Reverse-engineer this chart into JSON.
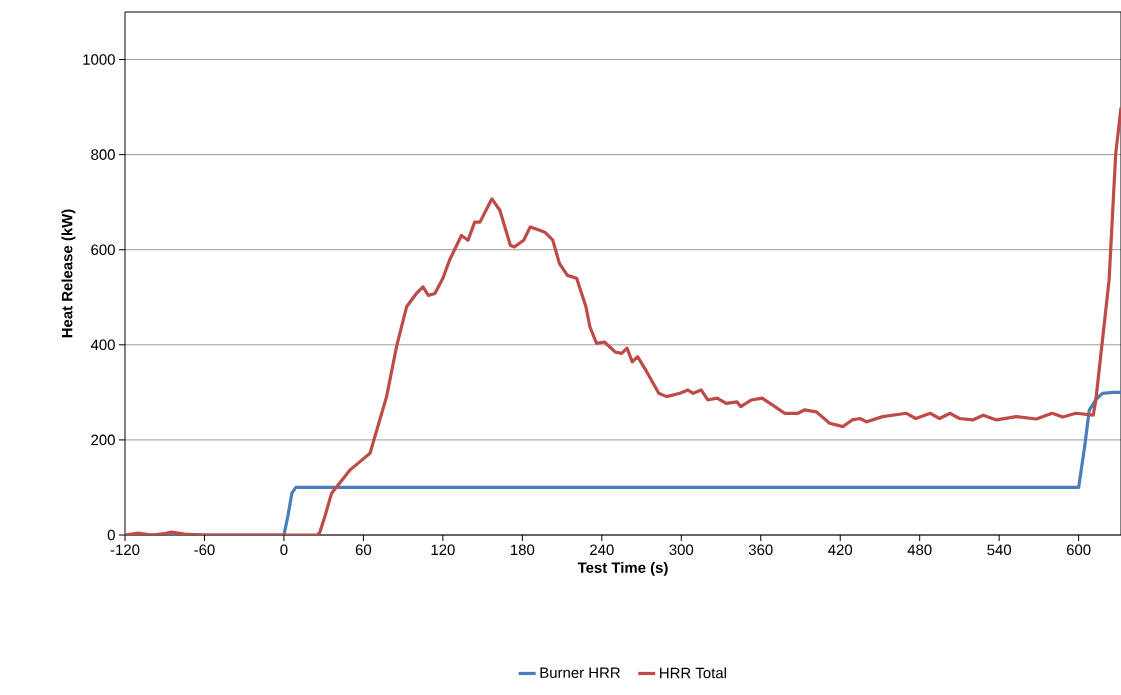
{
  "chart_data": {
    "type": "line",
    "xlabel": "Test Time (s)",
    "ylabel": "Heat Release (kW)",
    "xlim": [
      -120,
      632
    ],
    "ylim": [
      0,
      1100
    ],
    "xticks": [
      -120,
      -60,
      0,
      60,
      120,
      180,
      240,
      300,
      360,
      420,
      480,
      540,
      600
    ],
    "yticks": [
      0,
      200,
      400,
      600,
      800,
      1000
    ],
    "grid": "y",
    "legend": "bottom",
    "marker": "none",
    "line_style": "solid",
    "series": [
      {
        "name": "Burner HRR",
        "color": "#4a7ebb",
        "x": [
          -120,
          -60,
          0,
          3,
          6,
          9,
          60,
          120,
          300,
          600,
          604.5,
          608,
          613,
          618,
          626,
          632
        ],
        "values": [
          0,
          0,
          0,
          40,
          88,
          100,
          100,
          100,
          100,
          100,
          185,
          262,
          285,
          298,
          300,
          300
        ]
      },
      {
        "name": "HRR Total",
        "color": "#be4b48",
        "x": [
          -120,
          -110,
          -100,
          -90,
          -85,
          -75,
          -60,
          -30,
          0,
          25,
          27,
          31,
          36,
          50,
          65,
          77.5,
          85,
          92.6,
          100,
          105,
          109,
          114,
          120,
          125,
          134,
          139,
          144,
          148,
          157,
          163,
          171,
          174,
          181,
          186,
          193,
          197,
          203,
          208,
          214,
          221,
          228,
          231,
          236,
          242,
          250,
          255,
          259,
          263,
          267,
          274,
          283,
          289,
          299,
          305,
          309,
          315,
          320,
          327,
          334,
          342,
          345,
          353,
          361,
          369,
          378,
          388,
          393,
          402,
          412,
          422,
          429,
          435,
          440,
          452,
          470,
          477,
          488,
          495,
          503,
          510,
          520,
          528,
          538,
          553,
          568,
          580,
          588,
          598,
          611,
          613,
          623,
          628,
          632
        ],
        "values": [
          0,
          4,
          0,
          3,
          6,
          2,
          0,
          0,
          0,
          0,
          5,
          40,
          88,
          137,
          172,
          291,
          396,
          480,
          508,
          522,
          504,
          508,
          540,
          578,
          630,
          620,
          658,
          658,
          707,
          683,
          609,
          606,
          620,
          648,
          641,
          637,
          620,
          571,
          546,
          540,
          480,
          438,
          403,
          406,
          385,
          382,
          393,
          364,
          375,
          343,
          298,
          291,
          298,
          305,
          298,
          305,
          284,
          288,
          277,
          280,
          270,
          284,
          288,
          273,
          256,
          256,
          263,
          259,
          235,
          228,
          242,
          245,
          238,
          249,
          256,
          245,
          256,
          245,
          256,
          245,
          242,
          252,
          242,
          249,
          244,
          256,
          248,
          256,
          252,
          284,
          536,
          802,
          899
        ]
      }
    ]
  }
}
